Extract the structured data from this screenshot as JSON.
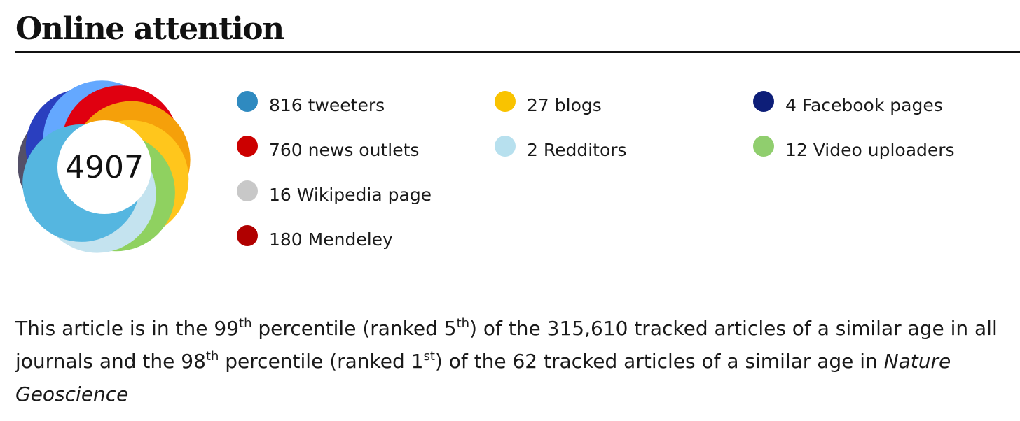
{
  "section": {
    "title": "Online attention"
  },
  "badge": {
    "score": "4907",
    "ring_colors": [
      "#2a3fbf",
      "#64a8ff",
      "#e00010",
      "#f5a00a",
      "#ffc61c",
      "#8fd160",
      "#c4e3ef",
      "#55b6e0",
      "#545068"
    ]
  },
  "sources": [
    {
      "label": "816 tweeters",
      "color": "#2f8ac0"
    },
    {
      "label": "27 blogs",
      "color": "#f9c300"
    },
    {
      "label": "4 Facebook pages",
      "color": "#0d1e78"
    },
    {
      "label": "760 news outlets",
      "color": "#cc0000"
    },
    {
      "label": "2 Redditors",
      "color": "#b7e0ee"
    },
    {
      "label": "12 Video uploaders",
      "color": "#90ce6e"
    },
    {
      "label": "16 Wikipedia page",
      "color": "#c8c8c8"
    },
    {
      "label": "180 Mendeley",
      "color": "#b00000"
    }
  ],
  "summary": {
    "t1": "This article is in the 99",
    "s1": "th",
    "t2": " percentile (ranked 5",
    "s2": "th",
    "t3": ") of the 315,610 tracked articles of a similar age in all journals and the 98",
    "s3": "th",
    "t4": " percentile (ranked 1",
    "s4": "st",
    "t5": ") of the 62 tracked articles of a similar age in ",
    "journal": "Nature Geoscience"
  }
}
